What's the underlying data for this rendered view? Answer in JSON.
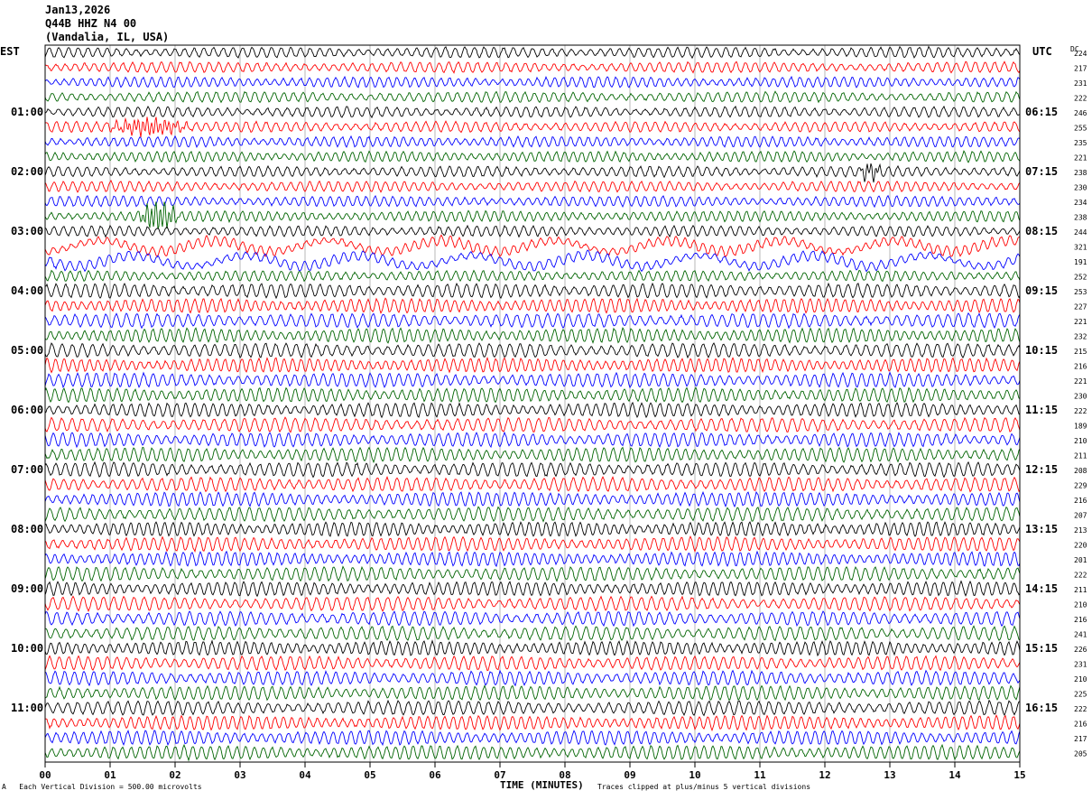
{
  "header": {
    "date": "Jan13,2026",
    "station": "Q44B HHZ N4 00",
    "location": "(Vandalia, IL, USA)"
  },
  "left_tz": "EST",
  "right_tz": "UTC",
  "dc_label": "DC",
  "footer": {
    "scale": "Each Vertical Division =  500.00 microvolts",
    "clip": "Traces clipped at plus/minus 5 vertical divisions",
    "corner_mark": "A"
  },
  "colors": [
    "#000000",
    "#ff0000",
    "#0000ff",
    "#006400"
  ],
  "chart_data": {
    "type": "line",
    "title": "",
    "xlabel": "TIME (MINUTES)",
    "ylabel": "",
    "xlim": [
      0,
      15
    ],
    "x_ticks": [
      "00",
      "01",
      "02",
      "03",
      "04",
      "05",
      "06",
      "07",
      "08",
      "09",
      "10",
      "11",
      "12",
      "13",
      "14",
      "15"
    ],
    "left_hour_labels": [
      "01:00",
      "02:00",
      "03:00",
      "04:00",
      "05:00",
      "06:00",
      "07:00",
      "08:00",
      "09:00",
      "10:00",
      "11:00"
    ],
    "right_hour_labels": [
      "06:15",
      "07:15",
      "08:15",
      "09:15",
      "10:15",
      "11:15",
      "12:15",
      "13:15",
      "14:15",
      "15:15",
      "16:15"
    ],
    "trace_count": 48,
    "traces_per_hour": 4,
    "dc_offsets": [
      224,
      217,
      231,
      222,
      246,
      255,
      235,
      221,
      238,
      230,
      234,
      238,
      244,
      321,
      191,
      252,
      253,
      227,
      221,
      232,
      215,
      216,
      221,
      230,
      222,
      189,
      210,
      211,
      208,
      229,
      216,
      207,
      213,
      220,
      201,
      222,
      211,
      210,
      216,
      241,
      226,
      231,
      210,
      225,
      222,
      216,
      217,
      205
    ],
    "events": [
      {
        "trace": 5,
        "start_min": 0.9,
        "end_min": 2.3,
        "amplitude": "moderate"
      },
      {
        "trace": 8,
        "start_min": 12.5,
        "end_min": 12.9,
        "amplitude": "moderate"
      },
      {
        "trace": 11,
        "start_min": 1.4,
        "end_min": 2.1,
        "amplitude": "large"
      }
    ]
  }
}
